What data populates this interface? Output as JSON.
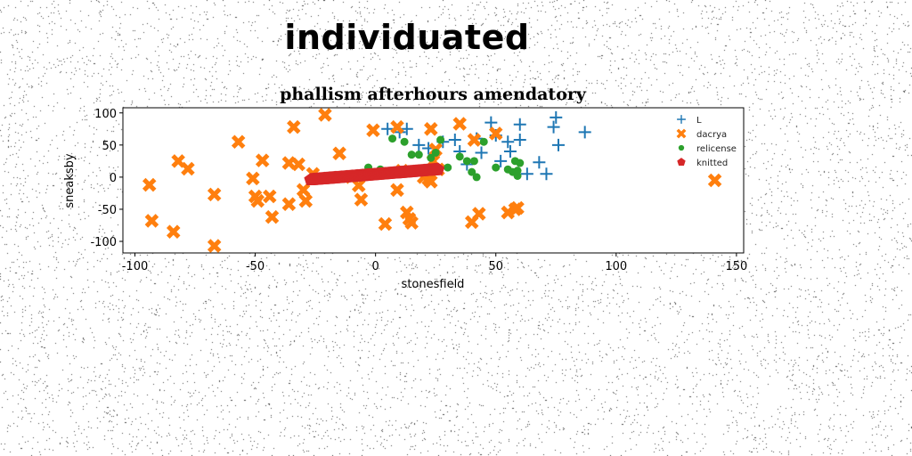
{
  "header": {
    "suptitle": "individuated"
  },
  "chart_data": {
    "type": "scatter",
    "title": "phallism afterhours amendatory",
    "xlabel": "stonesfield",
    "ylabel": "sneaksby",
    "xlim": [
      -105,
      153
    ],
    "ylim": [
      -118,
      108
    ],
    "xticks": [
      -100,
      -50,
      0,
      50,
      100,
      150
    ],
    "yticks": [
      100,
      50,
      0,
      -50,
      -100
    ],
    "grid": false,
    "legend_position": "top-right",
    "series": [
      {
        "name": "L",
        "marker": "plus",
        "color": "#1f77b4",
        "points": [
          [
            5,
            75
          ],
          [
            10,
            70
          ],
          [
            13,
            75
          ],
          [
            18,
            50
          ],
          [
            22,
            45
          ],
          [
            28,
            55
          ],
          [
            33,
            58
          ],
          [
            35,
            40
          ],
          [
            42,
            60
          ],
          [
            48,
            85
          ],
          [
            50,
            65
          ],
          [
            55,
            55
          ],
          [
            56,
            40
          ],
          [
            60,
            58
          ],
          [
            60,
            82
          ],
          [
            63,
            5
          ],
          [
            68,
            23
          ],
          [
            71,
            5
          ],
          [
            74,
            78
          ],
          [
            75,
            93
          ],
          [
            76,
            50
          ],
          [
            87,
            70
          ],
          [
            44,
            38
          ],
          [
            52,
            25
          ],
          [
            38,
            20
          ]
        ]
      },
      {
        "name": "dacrya",
        "marker": "x",
        "color": "#ff7f0e",
        "points": [
          [
            -94,
            -12
          ],
          [
            -93,
            -68
          ],
          [
            -84,
            -85
          ],
          [
            -82,
            25
          ],
          [
            -78,
            13
          ],
          [
            -67,
            -107
          ],
          [
            -67,
            -27
          ],
          [
            -57,
            55
          ],
          [
            -51,
            -2
          ],
          [
            -50,
            -30
          ],
          [
            -49,
            -37
          ],
          [
            -47,
            26
          ],
          [
            -44,
            -30
          ],
          [
            -43,
            -62
          ],
          [
            -36,
            22
          ],
          [
            -36,
            -42
          ],
          [
            -34,
            78
          ],
          [
            -32,
            20
          ],
          [
            -30,
            -20
          ],
          [
            -29,
            -37
          ],
          [
            -26,
            5
          ],
          [
            -21,
            97
          ],
          [
            -15,
            37
          ],
          [
            -10,
            0
          ],
          [
            -7,
            -13
          ],
          [
            -6,
            -35
          ],
          [
            -1,
            73
          ],
          [
            4,
            -73
          ],
          [
            9,
            78
          ],
          [
            9,
            -20
          ],
          [
            11,
            10
          ],
          [
            13,
            -55
          ],
          [
            14,
            -65
          ],
          [
            15,
            -71
          ],
          [
            20,
            0
          ],
          [
            22,
            -3
          ],
          [
            23,
            -7
          ],
          [
            23,
            75
          ],
          [
            24,
            25
          ],
          [
            25,
            43
          ],
          [
            26,
            12
          ],
          [
            35,
            83
          ],
          [
            40,
            -70
          ],
          [
            41,
            58
          ],
          [
            43,
            -57
          ],
          [
            50,
            68
          ],
          [
            55,
            -55
          ],
          [
            58,
            -50
          ],
          [
            59,
            -48
          ],
          [
            141,
            -5
          ]
        ]
      },
      {
        "name": "relicense",
        "marker": "circle",
        "color": "#2ca02c",
        "points": [
          [
            7,
            60
          ],
          [
            12,
            55
          ],
          [
            15,
            35
          ],
          [
            18,
            35
          ],
          [
            23,
            30
          ],
          [
            25,
            38
          ],
          [
            27,
            58
          ],
          [
            30,
            15
          ],
          [
            35,
            32
          ],
          [
            38,
            25
          ],
          [
            40,
            8
          ],
          [
            41,
            25
          ],
          [
            42,
            0
          ],
          [
            45,
            55
          ],
          [
            50,
            15
          ],
          [
            55,
            12
          ],
          [
            57,
            8
          ],
          [
            58,
            25
          ],
          [
            59,
            10
          ],
          [
            59,
            2
          ],
          [
            60,
            22
          ],
          [
            2,
            12
          ],
          [
            -3,
            15
          ]
        ]
      },
      {
        "name": "knitted",
        "marker": "pentagon",
        "color": "#d62728",
        "line_from": [
          -27,
          -4
        ],
        "line_to": [
          26,
          12
        ]
      }
    ]
  }
}
